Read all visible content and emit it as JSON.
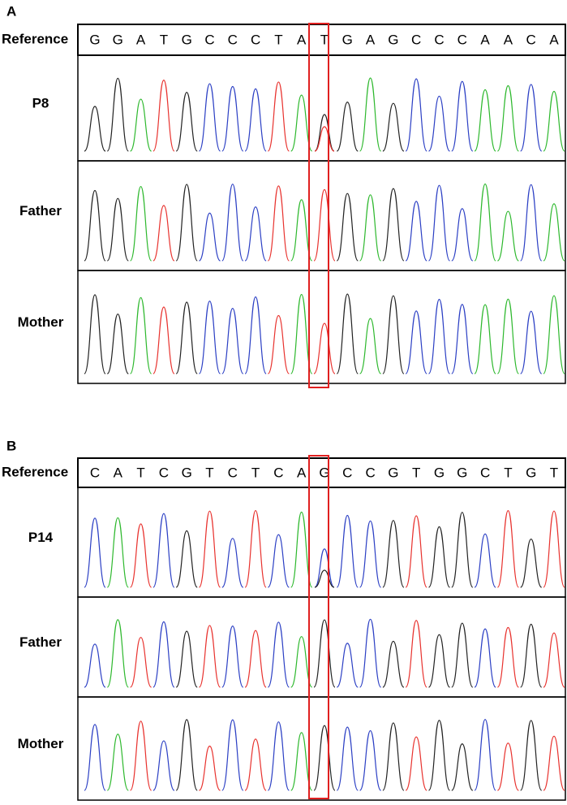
{
  "panels": [
    {
      "label": "A",
      "reference_label": "Reference",
      "sequence": [
        "G",
        "G",
        "A",
        "T",
        "G",
        "C",
        "C",
        "C",
        "T",
        "A",
        "T",
        "G",
        "A",
        "G",
        "C",
        "C",
        "C",
        "A",
        "A",
        "C",
        "A"
      ],
      "rows": [
        "P8",
        "Father",
        "Mother"
      ]
    },
    {
      "label": "B",
      "reference_label": "Reference",
      "sequence": [
        "C",
        "A",
        "T",
        "C",
        "G",
        "T",
        "C",
        "T",
        "C",
        "A",
        "G",
        "C",
        "C",
        "G",
        "T",
        "G",
        "G",
        "C",
        "T",
        "G",
        "T"
      ],
      "rows": [
        "P14",
        "Father",
        "Mother"
      ]
    }
  ]
}
